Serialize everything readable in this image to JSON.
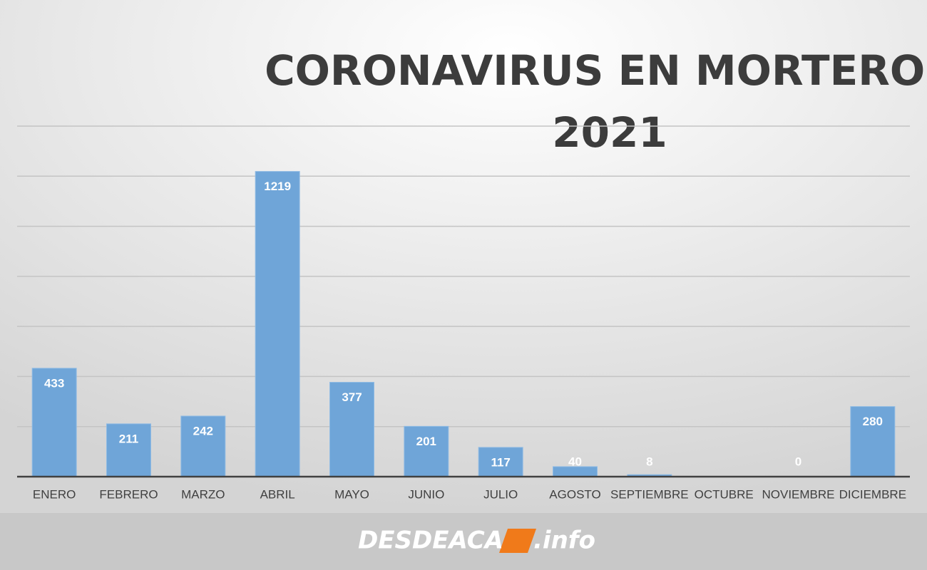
{
  "chart_data": {
    "type": "bar",
    "title": [
      "CORONAVIRUS EN MORTEROS",
      "2021"
    ],
    "categories": [
      "ENERO",
      "FEBRERO",
      "MARZO",
      "ABRIL",
      "MAYO",
      "JUNIO",
      "JULIO",
      "AGOSTO",
      "SEPTIEMBRE",
      "OCTUBRE",
      "NOVIEMBRE",
      "DICIEMBRE"
    ],
    "values": [
      433,
      211,
      242,
      1219,
      377,
      201,
      117,
      40,
      8,
      null,
      0,
      280
    ],
    "color": "#6fa5d8",
    "ylim": [
      0,
      1400
    ],
    "yticks": [
      0,
      200,
      400,
      600,
      800,
      1000,
      1200,
      1400
    ],
    "grid": true
  },
  "footer": {
    "logo": "DESDEACA",
    "suffix": ".info"
  }
}
